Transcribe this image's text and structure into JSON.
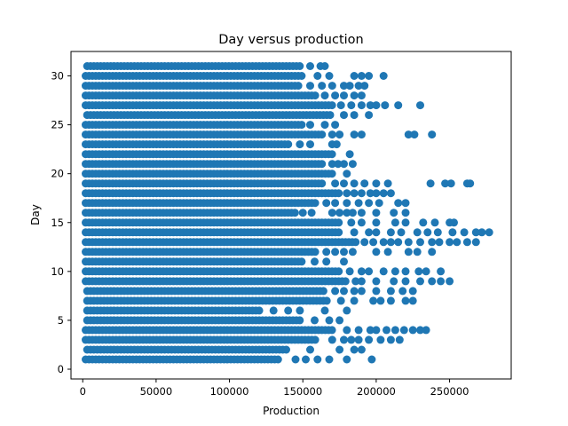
{
  "chart_data": {
    "type": "scatter",
    "title": "Day versus production",
    "xlabel": "Production",
    "ylabel": "Day",
    "xlim": [
      -8000,
      292000
    ],
    "ylim": [
      -1,
      32.5
    ],
    "xticks": [
      0,
      50000,
      100000,
      150000,
      200000,
      250000
    ],
    "yticks": [
      0,
      5,
      10,
      15,
      20,
      25,
      30
    ],
    "grid": false,
    "marker_color": "#1f77b4",
    "series": [
      {
        "rows": [
          {
            "day": 1,
            "dense_from": 2000,
            "dense_to": 135000,
            "outliers": [
              145000,
              152000,
              160000,
              168000,
              180000,
              197000
            ]
          },
          {
            "day": 2,
            "dense_from": 3000,
            "dense_to": 140000,
            "outliers": [
              155000,
              175000,
              185000,
              190000
            ]
          },
          {
            "day": 3,
            "dense_from": 2000,
            "dense_to": 160000,
            "outliers": [
              170000,
              178000,
              183000,
              188000,
              195000,
              203000,
              210000,
              216000
            ]
          },
          {
            "day": 4,
            "dense_from": 2000,
            "dense_to": 172000,
            "outliers": [
              180000,
              188000,
              196000,
              200000,
              207000,
              213000,
              219000,
              225000,
              230000,
              234000
            ]
          },
          {
            "day": 5,
            "dense_from": 3000,
            "dense_to": 150000,
            "outliers": [
              158000,
              168000,
              175000
            ]
          },
          {
            "day": 6,
            "dense_from": 3000,
            "dense_to": 122000,
            "outliers": [
              130000,
              140000,
              148000,
              165000,
              180000
            ]
          },
          {
            "day": 7,
            "dense_from": 3000,
            "dense_to": 168000,
            "outliers": [
              176000,
              185000,
              198000,
              203000,
              210000,
              220000,
              225000
            ]
          },
          {
            "day": 8,
            "dense_from": 3000,
            "dense_to": 165000,
            "outliers": [
              172000,
              178000,
              185000,
              190000,
              200000,
              210000,
              218000,
              225000
            ]
          },
          {
            "day": 9,
            "dense_from": 2000,
            "dense_to": 180000,
            "outliers": [
              186000,
              190000,
              200000,
              212000,
              220000,
              230000,
              238000,
              244000,
              250000
            ]
          },
          {
            "day": 10,
            "dense_from": 2000,
            "dense_to": 175000,
            "outliers": [
              182000,
              190000,
              195000,
              205000,
              213000,
              220000,
              229000,
              234000,
              244000
            ]
          },
          {
            "day": 11,
            "dense_from": 2000,
            "dense_to": 150000,
            "outliers": [
              158000,
              166000,
              178000
            ]
          },
          {
            "day": 12,
            "dense_from": 2000,
            "dense_to": 160000,
            "outliers": [
              166000,
              172000,
              178000,
              184000,
              200000,
              208000,
              222000,
              228000,
              238000
            ]
          },
          {
            "day": 13,
            "dense_from": 2000,
            "dense_to": 186000,
            "outliers": [
              192000,
              198000,
              205000,
              210000,
              215000,
              222000,
              230000,
              238000,
              243000,
              250000,
              255000,
              262000,
              268000
            ]
          },
          {
            "day": 14,
            "dense_from": 2000,
            "dense_to": 175000,
            "outliers": [
              185000,
              195000,
              200000,
              210000,
              217000,
              228000,
              235000,
              242000,
              252000,
              260000,
              268000,
              272000,
              277000
            ]
          },
          {
            "day": 15,
            "dense_from": 2000,
            "dense_to": 175000,
            "outliers": [
              183000,
              190000,
              200000,
              213000,
              220000,
              232000,
              240000,
              250000,
              253000
            ]
          },
          {
            "day": 16,
            "dense_from": 2000,
            "dense_to": 145000,
            "outliers": [
              150000,
              156000,
              170000,
              175000,
              180000,
              184000,
              190000,
              200000,
              212000,
              220000
            ]
          },
          {
            "day": 17,
            "dense_from": 2000,
            "dense_to": 160000,
            "outliers": [
              166000,
              172000,
              180000,
              188000,
              195000,
              202000,
              215000,
              220000
            ]
          },
          {
            "day": 18,
            "dense_from": 2000,
            "dense_to": 175000,
            "outliers": [
              180000,
              185000,
              190000,
              196000,
              200000,
              205000,
              210000
            ]
          },
          {
            "day": 19,
            "dense_from": 2000,
            "dense_to": 165000,
            "outliers": [
              172000,
              178000,
              185000,
              192000,
              200000,
              208000,
              237000,
              247000,
              251000,
              262000,
              264000
            ]
          },
          {
            "day": 20,
            "dense_from": 2000,
            "dense_to": 172000,
            "outliers": [
              180000
            ]
          },
          {
            "day": 21,
            "dense_from": 2000,
            "dense_to": 165000,
            "outliers": [
              170000,
              174000,
              178000,
              184000
            ]
          },
          {
            "day": 22,
            "dense_from": 2000,
            "dense_to": 172000,
            "outliers": [
              182000
            ]
          },
          {
            "day": 23,
            "dense_from": 2000,
            "dense_to": 140000,
            "outliers": [
              148000,
              155000,
              170000,
              173000
            ]
          },
          {
            "day": 24,
            "dense_from": 2000,
            "dense_to": 165000,
            "outliers": [
              170000,
              175000,
              185000,
              190000,
              222000,
              226000,
              238000
            ]
          },
          {
            "day": 25,
            "dense_from": 2000,
            "dense_to": 150000,
            "outliers": [
              155000,
              165000,
              172000
            ]
          },
          {
            "day": 26,
            "dense_from": 3000,
            "dense_to": 170000,
            "outliers": [
              178000,
              185000,
              195000
            ]
          },
          {
            "day": 27,
            "dense_from": 2000,
            "dense_to": 170000,
            "outliers": [
              176000,
              183000,
              190000,
              196000,
              200000,
              206000,
              215000,
              230000
            ]
          },
          {
            "day": 28,
            "dense_from": 2000,
            "dense_to": 160000,
            "outliers": [
              165000,
              172000,
              178000,
              185000,
              190000
            ]
          },
          {
            "day": 29,
            "dense_from": 2000,
            "dense_to": 148000,
            "outliers": [
              155000,
              163000,
              170000,
              178000,
              182000,
              188000,
              192000
            ]
          },
          {
            "day": 30,
            "dense_from": 2000,
            "dense_to": 150000,
            "outliers": [
              160000,
              168000,
              185000,
              190000,
              195000,
              205000
            ]
          },
          {
            "day": 31,
            "dense_from": 3000,
            "dense_to": 150000,
            "outliers": [
              155000,
              162000,
              165000
            ]
          }
        ]
      }
    ]
  }
}
